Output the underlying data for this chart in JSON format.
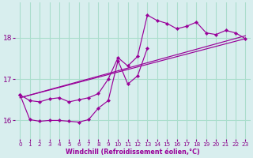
{
  "background_color": "#d8eeee",
  "grid_color": "#aaddcc",
  "line_color": "#990099",
  "marker_color": "#990099",
  "xlabel": "Windchill (Refroidissement éolien,°C)",
  "xlabel_color": "#990099",
  "tick_color": "#880088",
  "xlim": [
    -0.5,
    23.5
  ],
  "ylim": [
    15.55,
    18.85
  ],
  "yticks": [
    16,
    17,
    18
  ],
  "xticks": [
    0,
    1,
    2,
    3,
    4,
    5,
    6,
    7,
    8,
    9,
    10,
    11,
    12,
    13,
    14,
    15,
    16,
    17,
    18,
    19,
    20,
    21,
    22,
    23
  ],
  "series": [
    {
      "x": [
        0,
        1,
        2,
        3,
        4,
        5,
        6,
        7,
        8,
        9,
        10,
        11,
        12,
        13,
        14,
        15,
        16,
        17,
        18,
        19,
        20,
        21,
        22,
        23
      ],
      "y": [
        16.62,
        16.48,
        16.45,
        16.52,
        16.55,
        16.45,
        16.5,
        16.55,
        16.65,
        17.0,
        17.52,
        17.32,
        17.55,
        18.55,
        18.42,
        18.35,
        18.22,
        18.28,
        18.38,
        18.12,
        18.08,
        18.18,
        18.12,
        17.98
      ],
      "marker": true,
      "linewidth": 0.85
    },
    {
      "x": [
        0,
        1,
        2,
        3,
        4,
        5,
        6,
        7,
        8,
        9,
        10,
        11,
        12,
        13
      ],
      "y": [
        16.62,
        16.02,
        15.98,
        16.0,
        16.0,
        15.98,
        15.96,
        16.02,
        16.3,
        16.48,
        17.45,
        16.88,
        17.08,
        17.75
      ],
      "marker": true,
      "linewidth": 0.85
    },
    {
      "x": [
        0,
        23
      ],
      "y": [
        16.55,
        18.05
      ],
      "marker": false,
      "linewidth": 0.85
    },
    {
      "x": [
        0,
        23
      ],
      "y": [
        16.55,
        17.98
      ],
      "marker": false,
      "linewidth": 0.85
    }
  ]
}
